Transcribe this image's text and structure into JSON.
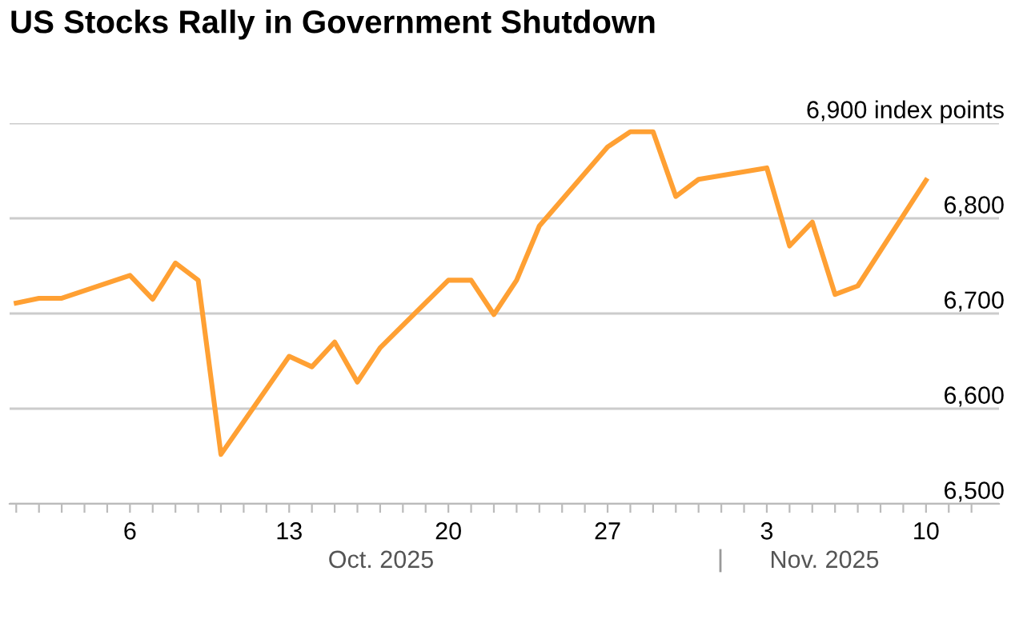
{
  "chart_data": {
    "type": "line",
    "title": "US Stocks Rally in Government Shutdown",
    "x": [
      "2025-10-01",
      "2025-10-02",
      "2025-10-03",
      "2025-10-06",
      "2025-10-07",
      "2025-10-08",
      "2025-10-09",
      "2025-10-10",
      "2025-10-13",
      "2025-10-14",
      "2025-10-15",
      "2025-10-16",
      "2025-10-17",
      "2025-10-20",
      "2025-10-21",
      "2025-10-22",
      "2025-10-23",
      "2025-10-24",
      "2025-10-27",
      "2025-10-28",
      "2025-10-29",
      "2025-10-30",
      "2025-10-31",
      "2025-11-03",
      "2025-11-04",
      "2025-11-05",
      "2025-11-06",
      "2025-11-07",
      "2025-11-10"
    ],
    "series": [
      {
        "color": "#ffa033",
        "values": [
          6711,
          6716,
          6716,
          6740,
          6715,
          6753,
          6735,
          6552,
          6655,
          6644,
          6670,
          6628,
          6664,
          6735,
          6735,
          6699,
          6735,
          6792,
          6875,
          6891,
          6891,
          6823,
          6841,
          6853,
          6771,
          6796,
          6720,
          6729,
          6840
        ]
      }
    ],
    "xlim": [
      "2025-09-30T17:00",
      "2025-11-13T05:00"
    ],
    "xticks": [
      {
        "value": "2025-10-01",
        "label": null
      },
      {
        "value": "2025-10-02",
        "label": null
      },
      {
        "value": "2025-10-03",
        "label": null
      },
      {
        "value": "2025-10-04",
        "label": null
      },
      {
        "value": "2025-10-05",
        "label": null
      },
      {
        "value": "2025-10-06",
        "label": "6"
      },
      {
        "value": "2025-10-07",
        "label": null
      },
      {
        "value": "2025-10-08",
        "label": null
      },
      {
        "value": "2025-10-09",
        "label": null
      },
      {
        "value": "2025-10-10",
        "label": null
      },
      {
        "value": "2025-10-11",
        "label": null
      },
      {
        "value": "2025-10-12",
        "label": null
      },
      {
        "value": "2025-10-13",
        "label": "13"
      },
      {
        "value": "2025-10-14",
        "label": null
      },
      {
        "value": "2025-10-15",
        "label": null
      },
      {
        "value": "2025-10-16",
        "label": null
      },
      {
        "value": "2025-10-17",
        "label": null
      },
      {
        "value": "2025-10-18",
        "label": null
      },
      {
        "value": "2025-10-19",
        "label": null
      },
      {
        "value": "2025-10-20",
        "label": "20"
      },
      {
        "value": "2025-10-21",
        "label": null
      },
      {
        "value": "2025-10-22",
        "label": null
      },
      {
        "value": "2025-10-23",
        "label": null
      },
      {
        "value": "2025-10-24",
        "label": null
      },
      {
        "value": "2025-10-25",
        "label": null
      },
      {
        "value": "2025-10-26",
        "label": null
      },
      {
        "value": "2025-10-27",
        "label": "27"
      },
      {
        "value": "2025-10-28",
        "label": null
      },
      {
        "value": "2025-10-29",
        "label": null
      },
      {
        "value": "2025-10-30",
        "label": null
      },
      {
        "value": "2025-10-31",
        "label": null
      },
      {
        "value": "2025-11-01",
        "label": null
      },
      {
        "value": "2025-11-02",
        "label": null
      },
      {
        "value": "2025-11-03",
        "label": "3"
      },
      {
        "value": "2025-11-04",
        "label": null
      },
      {
        "value": "2025-11-05",
        "label": null
      },
      {
        "value": "2025-11-06",
        "label": null
      },
      {
        "value": "2025-11-07",
        "label": null
      },
      {
        "value": "2025-11-08",
        "label": null
      },
      {
        "value": "2025-11-09",
        "label": null
      },
      {
        "value": "2025-11-10",
        "label": "10"
      },
      {
        "value": "2025-11-11",
        "label": null
      },
      {
        "value": "2025-11-12",
        "label": null
      }
    ],
    "ylim": [
      6500,
      6900
    ],
    "yticks": [
      {
        "value": 6500,
        "label": "6,500"
      },
      {
        "value": 6600,
        "label": "6,600"
      },
      {
        "value": 6700,
        "label": "6,700"
      },
      {
        "value": 6800,
        "label": "6,800"
      },
      {
        "value": 6900,
        "label": "6,900 index points"
      }
    ],
    "grid": "y",
    "marker": "none",
    "line_style": "solid",
    "annotations": [
      "Oct. 2025",
      "Nov. 2025"
    ]
  }
}
